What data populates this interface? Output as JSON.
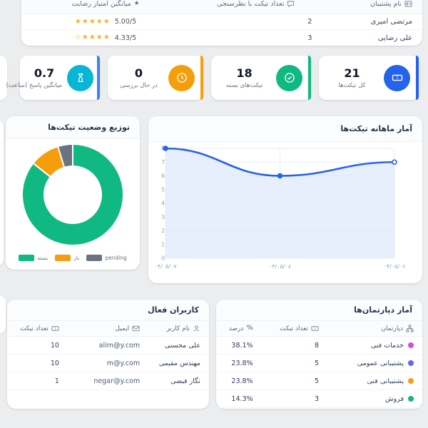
{
  "support_table": {
    "columns": [
      {
        "label": "نام پشتیبان",
        "icon": "id-badge-icon"
      },
      {
        "label": "تعداد تیکت با نظرسنجی",
        "icon": "comment-icon"
      },
      {
        "label": "میانگین امتیاز رضایت",
        "icon": "star-icon"
      }
    ],
    "rows": [
      {
        "name": "مرتضی امیری",
        "count": "2",
        "stars": "★★★★★",
        "score": "5.00/5"
      },
      {
        "name": "علی رضایی",
        "count": "3",
        "stars": "☆★★★★",
        "score": "4.33/5"
      }
    ]
  },
  "stat_cards": [
    {
      "value": "21",
      "label": "کل تیکت‌ها",
      "icon": "ticket-icon",
      "color": "#2563eb",
      "stripe_color": "#2563eb"
    },
    {
      "value": "18",
      "label": "تیکت‌های بسته",
      "icon": "check-circle-icon",
      "color": "#10b981",
      "stripe_color": "#10b981"
    },
    {
      "value": "0",
      "label": "در حال بررسی",
      "icon": "clock-icon",
      "color": "#f59e0b",
      "stripe_color": "#f59e0b"
    },
    {
      "value": "0.7",
      "label": "میانگین پاسخ (ساعت)",
      "icon": "hourglass-icon",
      "color": "#06b6d4",
      "stripe_color": "#3b82f6"
    }
  ],
  "chart_data": [
    {
      "type": "donut",
      "title": "توزیع وضعیت تیکت‌ها",
      "labels": [
        "بسته",
        "باز",
        "pending"
      ],
      "values": [
        18,
        2,
        1
      ],
      "percentages": [
        85.7,
        9.5,
        4.8
      ],
      "colors": [
        "#10b981",
        "#f59e0b",
        "#6b7280"
      ],
      "legend_position": "bottom"
    },
    {
      "type": "line",
      "title": "آمار ماهانه تیکت‌ها",
      "x": [
        "۰۴/۰۵/۰۶",
        "۰۴/۰۵/۰۸",
        "۰۴/۰۵/۰۷"
      ],
      "x_direction": "rtl",
      "values": [
        7,
        6,
        8
      ],
      "ylim": [
        0,
        8
      ],
      "yticks": [
        0,
        1,
        2,
        3,
        4,
        5,
        6,
        7,
        8
      ],
      "grid": true,
      "line_color": "#2563eb",
      "fill_color": "#dbe7fa"
    }
  ],
  "users_table": {
    "title": "کاربران فعال",
    "columns": [
      {
        "label": "نام کاربر",
        "icon": "user-icon"
      },
      {
        "label": "ایمیل",
        "icon": "mail-icon"
      },
      {
        "label": "تعداد تیکت",
        "icon": "ticket-icon"
      }
    ],
    "rows": [
      {
        "name": "علی محسنی",
        "email": "alim@y.com",
        "count": "10"
      },
      {
        "name": "مهندس مقیمی",
        "email": "m@y.com",
        "count": "10"
      },
      {
        "name": "نگار فیضی",
        "email": "negar@y.com",
        "count": "1"
      }
    ]
  },
  "departments_table": {
    "title": "آمار دپارتمان‌ها",
    "columns": [
      {
        "label": "دپارتمان",
        "icon": "sitemap-icon"
      },
      {
        "label": "تعداد تیکت",
        "icon": "ticket-icon"
      },
      {
        "label": "درصد",
        "icon": "percent-icon"
      }
    ],
    "rows": [
      {
        "name": "خدمات فنی",
        "dot_color": "#d946ef",
        "count": "8",
        "percent": "38.1%"
      },
      {
        "name": "پشتیبانی عمومی",
        "dot_color": "#6366f1",
        "count": "5",
        "percent": "23.8%"
      },
      {
        "name": "پشتیبانی فنی",
        "dot_color": "#f59e0b",
        "count": "5",
        "percent": "23.8%"
      },
      {
        "name": "فروش",
        "dot_color": "#10b981",
        "count": "3",
        "percent": "14.3%"
      }
    ]
  }
}
